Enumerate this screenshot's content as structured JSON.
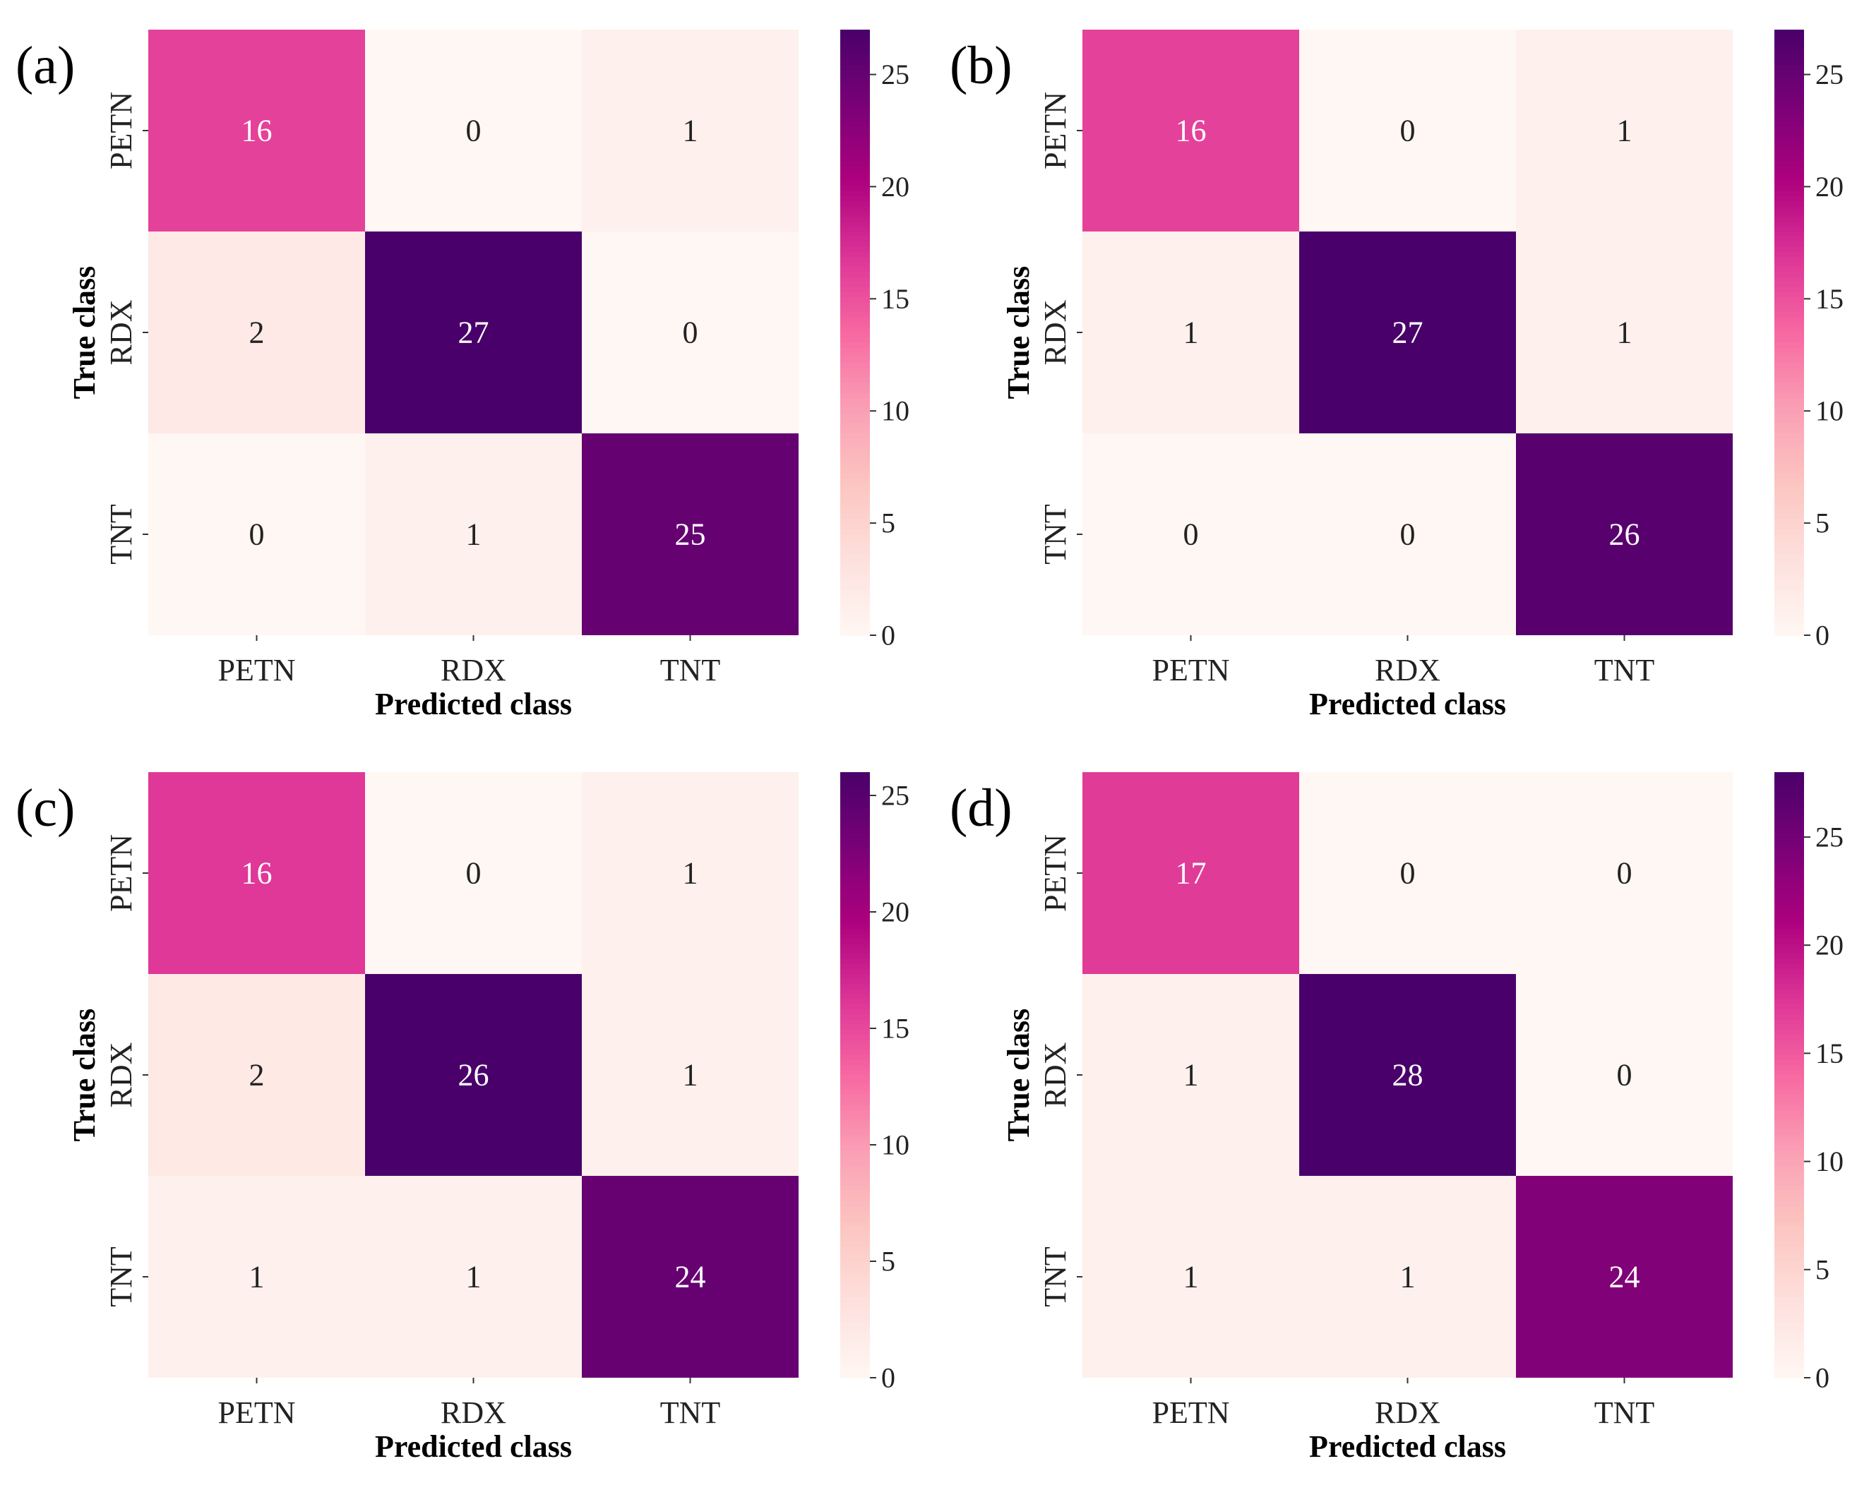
{
  "figure": {
    "chart_data": [
      {
        "type": "heatmap",
        "panel_label": "(a)",
        "classes": [
          "PETN",
          "RDX",
          "TNT"
        ],
        "matrix": [
          [
            16,
            0,
            1
          ],
          [
            2,
            27,
            0
          ],
          [
            0,
            1,
            25
          ]
        ],
        "xlabel": "Predicted class",
        "ylabel": "True class",
        "colorbar": {
          "vmin": 0,
          "vmax": 27,
          "ticks": [
            0,
            5,
            10,
            15,
            20,
            25
          ]
        }
      },
      {
        "type": "heatmap",
        "panel_label": "(b)",
        "classes": [
          "PETN",
          "RDX",
          "TNT"
        ],
        "matrix": [
          [
            16,
            0,
            1
          ],
          [
            1,
            27,
            1
          ],
          [
            0,
            0,
            26
          ]
        ],
        "xlabel": "Predicted class",
        "ylabel": "True class",
        "colorbar": {
          "vmin": 0,
          "vmax": 27,
          "ticks": [
            0,
            5,
            10,
            15,
            20,
            25
          ]
        }
      },
      {
        "type": "heatmap",
        "panel_label": "(c)",
        "classes": [
          "PETN",
          "RDX",
          "TNT"
        ],
        "matrix": [
          [
            16,
            0,
            1
          ],
          [
            2,
            26,
            1
          ],
          [
            1,
            1,
            24
          ]
        ],
        "xlabel": "Predicted class",
        "ylabel": "True class",
        "colorbar": {
          "vmin": 0,
          "vmax": 26,
          "ticks": [
            0,
            5,
            10,
            15,
            20,
            25
          ]
        }
      },
      {
        "type": "heatmap",
        "panel_label": "(d)",
        "classes": [
          "PETN",
          "RDX",
          "TNT"
        ],
        "matrix": [
          [
            17,
            0,
            0
          ],
          [
            1,
            28,
            0
          ],
          [
            1,
            1,
            24
          ]
        ],
        "xlabel": "Predicted class",
        "ylabel": "True class",
        "colorbar": {
          "vmin": 0,
          "vmax": 28,
          "ticks": [
            0,
            5,
            10,
            15,
            20,
            25
          ]
        }
      }
    ],
    "colormap": [
      "#fff7f3",
      "#fde0dd",
      "#fcc5c0",
      "#fa9fb5",
      "#f768a1",
      "#dd3497",
      "#ae017e",
      "#7a0177",
      "#49006a"
    ]
  }
}
